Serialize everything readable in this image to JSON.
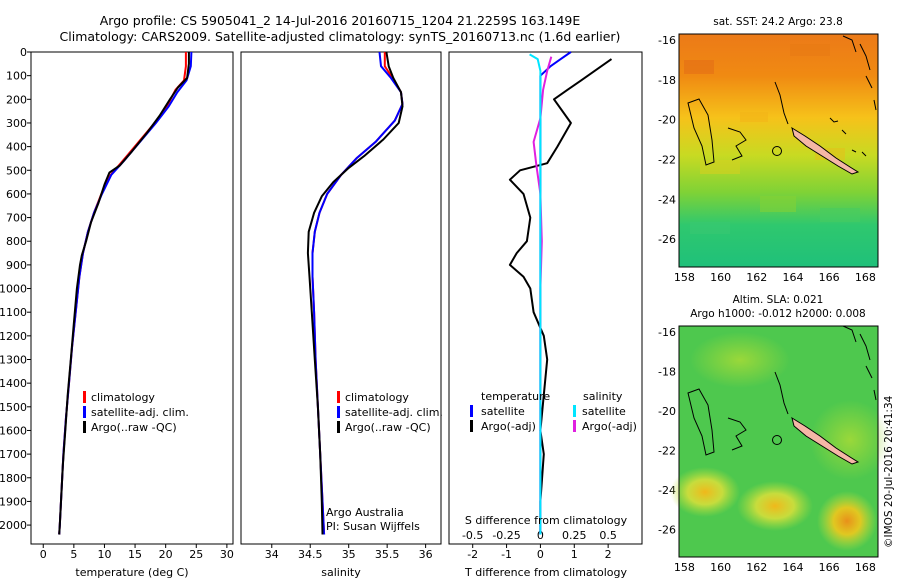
{
  "header": {
    "line1": "Argo profile: CS 5905041_2 14-Jul-2016 20160715_1204 21.2259S 163.149E",
    "line2": "Climatology: CARS2009. Satellite-adjusted climatology: synTS_20160713.nc (1.6d earlier)"
  },
  "colors": {
    "climatology": "#ff0000",
    "satellite": "#0000ff",
    "argo": "#000000",
    "sat_s_diff": "#00e5ff",
    "argo_s_diff": "#e020e0"
  },
  "chart_data": [
    {
      "type": "line",
      "name": "temperature-profile",
      "xlabel": "temperature (deg C)",
      "ylabel": "",
      "xlim": [
        -2,
        31
      ],
      "ylim": [
        2080,
        0
      ],
      "x_ticks": [
        "0",
        "5",
        "10",
        "15",
        "20",
        "25",
        "30"
      ],
      "x_tick_values": [
        0,
        5,
        10,
        15,
        20,
        25,
        30
      ],
      "y_ticks": [
        "0",
        "100",
        "200",
        "300",
        "400",
        "500",
        "600",
        "700",
        "800",
        "900",
        "1000",
        "1100",
        "1200",
        "1300",
        "1400",
        "1500",
        "1600",
        "1700",
        "1800",
        "1900",
        "2000"
      ],
      "y_tick_values": [
        0,
        100,
        200,
        300,
        400,
        500,
        600,
        700,
        800,
        900,
        1000,
        1100,
        1200,
        1300,
        1400,
        1500,
        1600,
        1700,
        1800,
        1900,
        2000
      ],
      "legend": [
        "climatology",
        "satellite-adj. clim.",
        "Argo(..raw -QC)"
      ],
      "series": [
        {
          "name": "climatology",
          "color": "#ff0000",
          "points": [
            [
              23.3,
              0
            ],
            [
              23.3,
              60
            ],
            [
              23.0,
              120
            ],
            [
              21.6,
              160
            ],
            [
              20.2,
              230
            ],
            [
              18.2,
              300
            ],
            [
              15.6,
              380
            ],
            [
              13.0,
              460
            ],
            [
              11.0,
              520
            ],
            [
              9.5,
              600
            ],
            [
              8.3,
              680
            ],
            [
              7.3,
              760
            ],
            [
              6.5,
              850
            ],
            [
              5.9,
              950
            ],
            [
              5.3,
              1100
            ],
            [
              4.7,
              1250
            ],
            [
              4.2,
              1400
            ],
            [
              3.7,
              1550
            ],
            [
              3.3,
              1700
            ],
            [
              3.0,
              1850
            ],
            [
              2.7,
              2000
            ],
            [
              2.6,
              2040
            ]
          ]
        },
        {
          "name": "satellite-adj. clim.",
          "color": "#0000ff",
          "points": [
            [
              24.2,
              0
            ],
            [
              24.1,
              60
            ],
            [
              23.4,
              120
            ],
            [
              21.9,
              170
            ],
            [
              20.5,
              230
            ],
            [
              18.4,
              300
            ],
            [
              15.8,
              380
            ],
            [
              13.2,
              460
            ],
            [
              11.1,
              520
            ],
            [
              9.6,
              600
            ],
            [
              8.3,
              680
            ],
            [
              7.3,
              760
            ],
            [
              6.5,
              850
            ],
            [
              5.9,
              950
            ],
            [
              5.3,
              1100
            ],
            [
              4.7,
              1250
            ],
            [
              4.2,
              1400
            ],
            [
              3.7,
              1550
            ],
            [
              3.3,
              1700
            ],
            [
              3.0,
              1850
            ],
            [
              2.7,
              2000
            ],
            [
              2.6,
              2040
            ]
          ]
        },
        {
          "name": "Argo(..raw -QC)",
          "color": "#000000",
          "points": [
            [
              23.8,
              0
            ],
            [
              23.8,
              50
            ],
            [
              23.5,
              110
            ],
            [
              22.0,
              150
            ],
            [
              20.7,
              200
            ],
            [
              19.0,
              270
            ],
            [
              17.0,
              340
            ],
            [
              14.5,
              420
            ],
            [
              12.5,
              480
            ],
            [
              10.8,
              510
            ],
            [
              10.0,
              560
            ],
            [
              9.0,
              640
            ],
            [
              7.8,
              720
            ],
            [
              7.0,
              800
            ],
            [
              6.3,
              860
            ],
            [
              6.0,
              900
            ],
            [
              5.5,
              1000
            ],
            [
              5.0,
              1150
            ],
            [
              4.5,
              1300
            ],
            [
              4.0,
              1450
            ],
            [
              3.6,
              1600
            ],
            [
              3.2,
              1750
            ],
            [
              2.9,
              1900
            ],
            [
              2.7,
              2000
            ],
            [
              2.6,
              2040
            ]
          ]
        }
      ]
    },
    {
      "type": "line",
      "name": "salinity-profile",
      "xlabel": "salinity",
      "xlim": [
        33.6,
        36.2
      ],
      "ylim": [
        2080,
        0
      ],
      "x_ticks": [
        "34",
        "34.5",
        "35",
        "35.5",
        "36"
      ],
      "x_tick_values": [
        34,
        34.5,
        35,
        35.5,
        36
      ],
      "legend": [
        "climatology",
        "satellite-adj. clim.",
        "Argo(..raw -QC)"
      ],
      "annotation": [
        "Argo Australia",
        "PI: Susan Wijffels"
      ],
      "series": [
        {
          "name": "climatology",
          "color": "#ff0000",
          "points": [
            [
              35.47,
              0
            ],
            [
              35.47,
              60
            ],
            [
              35.57,
              110
            ],
            [
              35.68,
              170
            ],
            [
              35.7,
              220
            ],
            [
              35.6,
              290
            ],
            [
              35.35,
              380
            ],
            [
              35.1,
              450
            ],
            [
              34.9,
              520
            ],
            [
              34.72,
              600
            ],
            [
              34.62,
              680
            ],
            [
              34.56,
              760
            ],
            [
              34.53,
              850
            ],
            [
              34.53,
              950
            ],
            [
              34.55,
              1100
            ],
            [
              34.57,
              1300
            ],
            [
              34.6,
              1500
            ],
            [
              34.63,
              1700
            ],
            [
              34.66,
              1900
            ],
            [
              34.68,
              2040
            ]
          ]
        },
        {
          "name": "satellite-adj. clim.",
          "color": "#0000ff",
          "points": [
            [
              35.4,
              0
            ],
            [
              35.42,
              60
            ],
            [
              35.55,
              110
            ],
            [
              35.68,
              170
            ],
            [
              35.7,
              220
            ],
            [
              35.6,
              290
            ],
            [
              35.35,
              380
            ],
            [
              35.1,
              450
            ],
            [
              34.9,
              520
            ],
            [
              34.72,
              600
            ],
            [
              34.62,
              680
            ],
            [
              34.56,
              760
            ],
            [
              34.53,
              850
            ],
            [
              34.53,
              950
            ],
            [
              34.55,
              1100
            ],
            [
              34.57,
              1300
            ],
            [
              34.6,
              1500
            ],
            [
              34.63,
              1700
            ],
            [
              34.66,
              1900
            ],
            [
              34.68,
              2040
            ]
          ]
        },
        {
          "name": "Argo(..raw -QC)",
          "color": "#000000",
          "points": [
            [
              35.49,
              0
            ],
            [
              35.52,
              60
            ],
            [
              35.58,
              110
            ],
            [
              35.68,
              170
            ],
            [
              35.7,
              230
            ],
            [
              35.65,
              300
            ],
            [
              35.45,
              370
            ],
            [
              35.2,
              440
            ],
            [
              35.0,
              490
            ],
            [
              34.8,
              550
            ],
            [
              34.65,
              610
            ],
            [
              34.55,
              680
            ],
            [
              34.48,
              760
            ],
            [
              34.47,
              850
            ],
            [
              34.49,
              950
            ],
            [
              34.52,
              1100
            ],
            [
              34.56,
              1300
            ],
            [
              34.6,
              1500
            ],
            [
              34.63,
              1700
            ],
            [
              34.65,
              1900
            ],
            [
              34.66,
              2040
            ]
          ]
        }
      ]
    },
    {
      "type": "line",
      "name": "difference-profile",
      "xlabel_top": "S difference from climatology",
      "xlabel": "T difference from climatology",
      "xlim": [
        -2.7,
        3.0
      ],
      "ylim": [
        2080,
        0
      ],
      "x_ticks_T": [
        "-2",
        "-1",
        "0",
        "1",
        "2"
      ],
      "x_tick_values_T": [
        -2,
        -1,
        0,
        1,
        2
      ],
      "x_ticks_S": [
        "-0.5",
        "-0.25",
        "0",
        "0.25",
        "0.5"
      ],
      "x_tick_values_S": [
        -0.5,
        -0.25,
        0,
        0.25,
        0.5
      ],
      "legend_left": {
        "title": "temperature",
        "items": [
          "satellite",
          "Argo(-adj)"
        ]
      },
      "legend_right": {
        "title": "salinity",
        "items": [
          "satellite",
          "Argo(-adj)"
        ]
      },
      "series": [
        {
          "name": "T satellite",
          "color": "#0000ff",
          "points": [
            [
              0.9,
              0
            ],
            [
              0.6,
              30
            ],
            [
              0.3,
              60
            ],
            [
              0.0,
              100
            ],
            [
              0.0,
              200
            ],
            [
              0.0,
              2040
            ]
          ]
        },
        {
          "name": "T Argo(-adj)",
          "color": "#000000",
          "points": [
            [
              2.1,
              30
            ],
            [
              1.6,
              80
            ],
            [
              1.2,
              120
            ],
            [
              0.8,
              160
            ],
            [
              0.4,
              200
            ],
            [
              0.9,
              300
            ],
            [
              0.5,
              400
            ],
            [
              0.2,
              470
            ],
            [
              -0.6,
              500
            ],
            [
              -0.9,
              540
            ],
            [
              -0.5,
              600
            ],
            [
              -0.3,
              700
            ],
            [
              -0.4,
              800
            ],
            [
              -0.7,
              850
            ],
            [
              -0.9,
              900
            ],
            [
              -0.5,
              950
            ],
            [
              -0.3,
              1000
            ],
            [
              -0.2,
              1100
            ],
            [
              0.1,
              1200
            ],
            [
              0.2,
              1300
            ],
            [
              0.1,
              1450
            ],
            [
              0.0,
              1600
            ],
            [
              0.1,
              1700
            ],
            [
              0.0,
              1900
            ],
            [
              0.0,
              2040
            ]
          ]
        },
        {
          "name": "S satellite",
          "color": "#00e5ff",
          "points": [
            [
              -0.08,
              10
            ],
            [
              -0.02,
              30
            ],
            [
              0.0,
              80
            ],
            [
              0.0,
              2040
            ]
          ]
        },
        {
          "name": "S Argo(-adj)",
          "color": "#e020e0",
          "points": [
            [
              0.08,
              20
            ],
            [
              0.05,
              80
            ],
            [
              0.02,
              160
            ],
            [
              0.0,
              280
            ],
            [
              -0.05,
              380
            ],
            [
              -0.03,
              480
            ],
            [
              0.0,
              600
            ],
            [
              0.01,
              800
            ],
            [
              0.0,
              1000
            ],
            [
              0.0,
              2040
            ]
          ]
        }
      ]
    },
    {
      "type": "heatmap",
      "name": "sst-map",
      "title": "sat. SST: 24.2  Argo: 23.8",
      "x_ticks": [
        "158",
        "160",
        "162",
        "164",
        "166",
        "168"
      ],
      "x_tick_values": [
        158,
        160,
        162,
        164,
        166,
        168
      ],
      "y_ticks": [
        "-16",
        "-18",
        "-20",
        "-22",
        "-24",
        "-26"
      ],
      "y_tick_values": [
        -16,
        -18,
        -20,
        -22,
        -24,
        -26
      ],
      "xlim": [
        157.7,
        168.7
      ],
      "ylim": [
        -27.4,
        -15.7
      ],
      "argo_position": [
        163.149,
        -21.2259
      ]
    },
    {
      "type": "heatmap",
      "name": "sla-map",
      "title_line1": "Altim. SLA: 0.021",
      "title_line2": "Argo h1000: -0.012  h2000: 0.008",
      "x_ticks": [
        "158",
        "160",
        "162",
        "164",
        "166",
        "168"
      ],
      "x_tick_values": [
        158,
        160,
        162,
        164,
        166,
        168
      ],
      "y_ticks": [
        "-16",
        "-18",
        "-20",
        "-22",
        "-24",
        "-26"
      ],
      "y_tick_values": [
        -16,
        -18,
        -20,
        -22,
        -24,
        -26
      ],
      "xlim": [
        157.7,
        168.7
      ],
      "ylim": [
        -27.4,
        -15.7
      ],
      "argo_position": [
        163.149,
        -21.2259
      ]
    }
  ],
  "footer": {
    "credit": "©IMOS 20-Jul-2016 20:41:34"
  }
}
